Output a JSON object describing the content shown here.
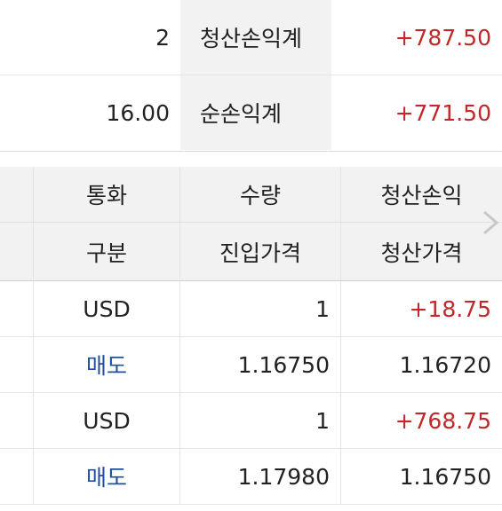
{
  "summary": {
    "row1": {
      "count": "2",
      "label": "청산손익계",
      "value": "+787.50"
    },
    "row2": {
      "count": "16.00",
      "label": "순손익계",
      "value": "+771.50"
    }
  },
  "table": {
    "header1": [
      "통화",
      "수량",
      "청산손익"
    ],
    "header2": [
      "구분",
      "진입가격",
      "청산가격"
    ],
    "rows": [
      [
        "USD",
        "1",
        "+18.75"
      ],
      [
        "매도",
        "1.16750",
        "1.16720"
      ],
      [
        "USD",
        "1",
        "+768.75"
      ],
      [
        "매도",
        "1.17980",
        "1.16750"
      ]
    ]
  },
  "colors": {
    "positive": "#c0282a",
    "sell": "#1f4f9e"
  },
  "icons": {
    "scroll_right": "chevron-right-icon"
  }
}
